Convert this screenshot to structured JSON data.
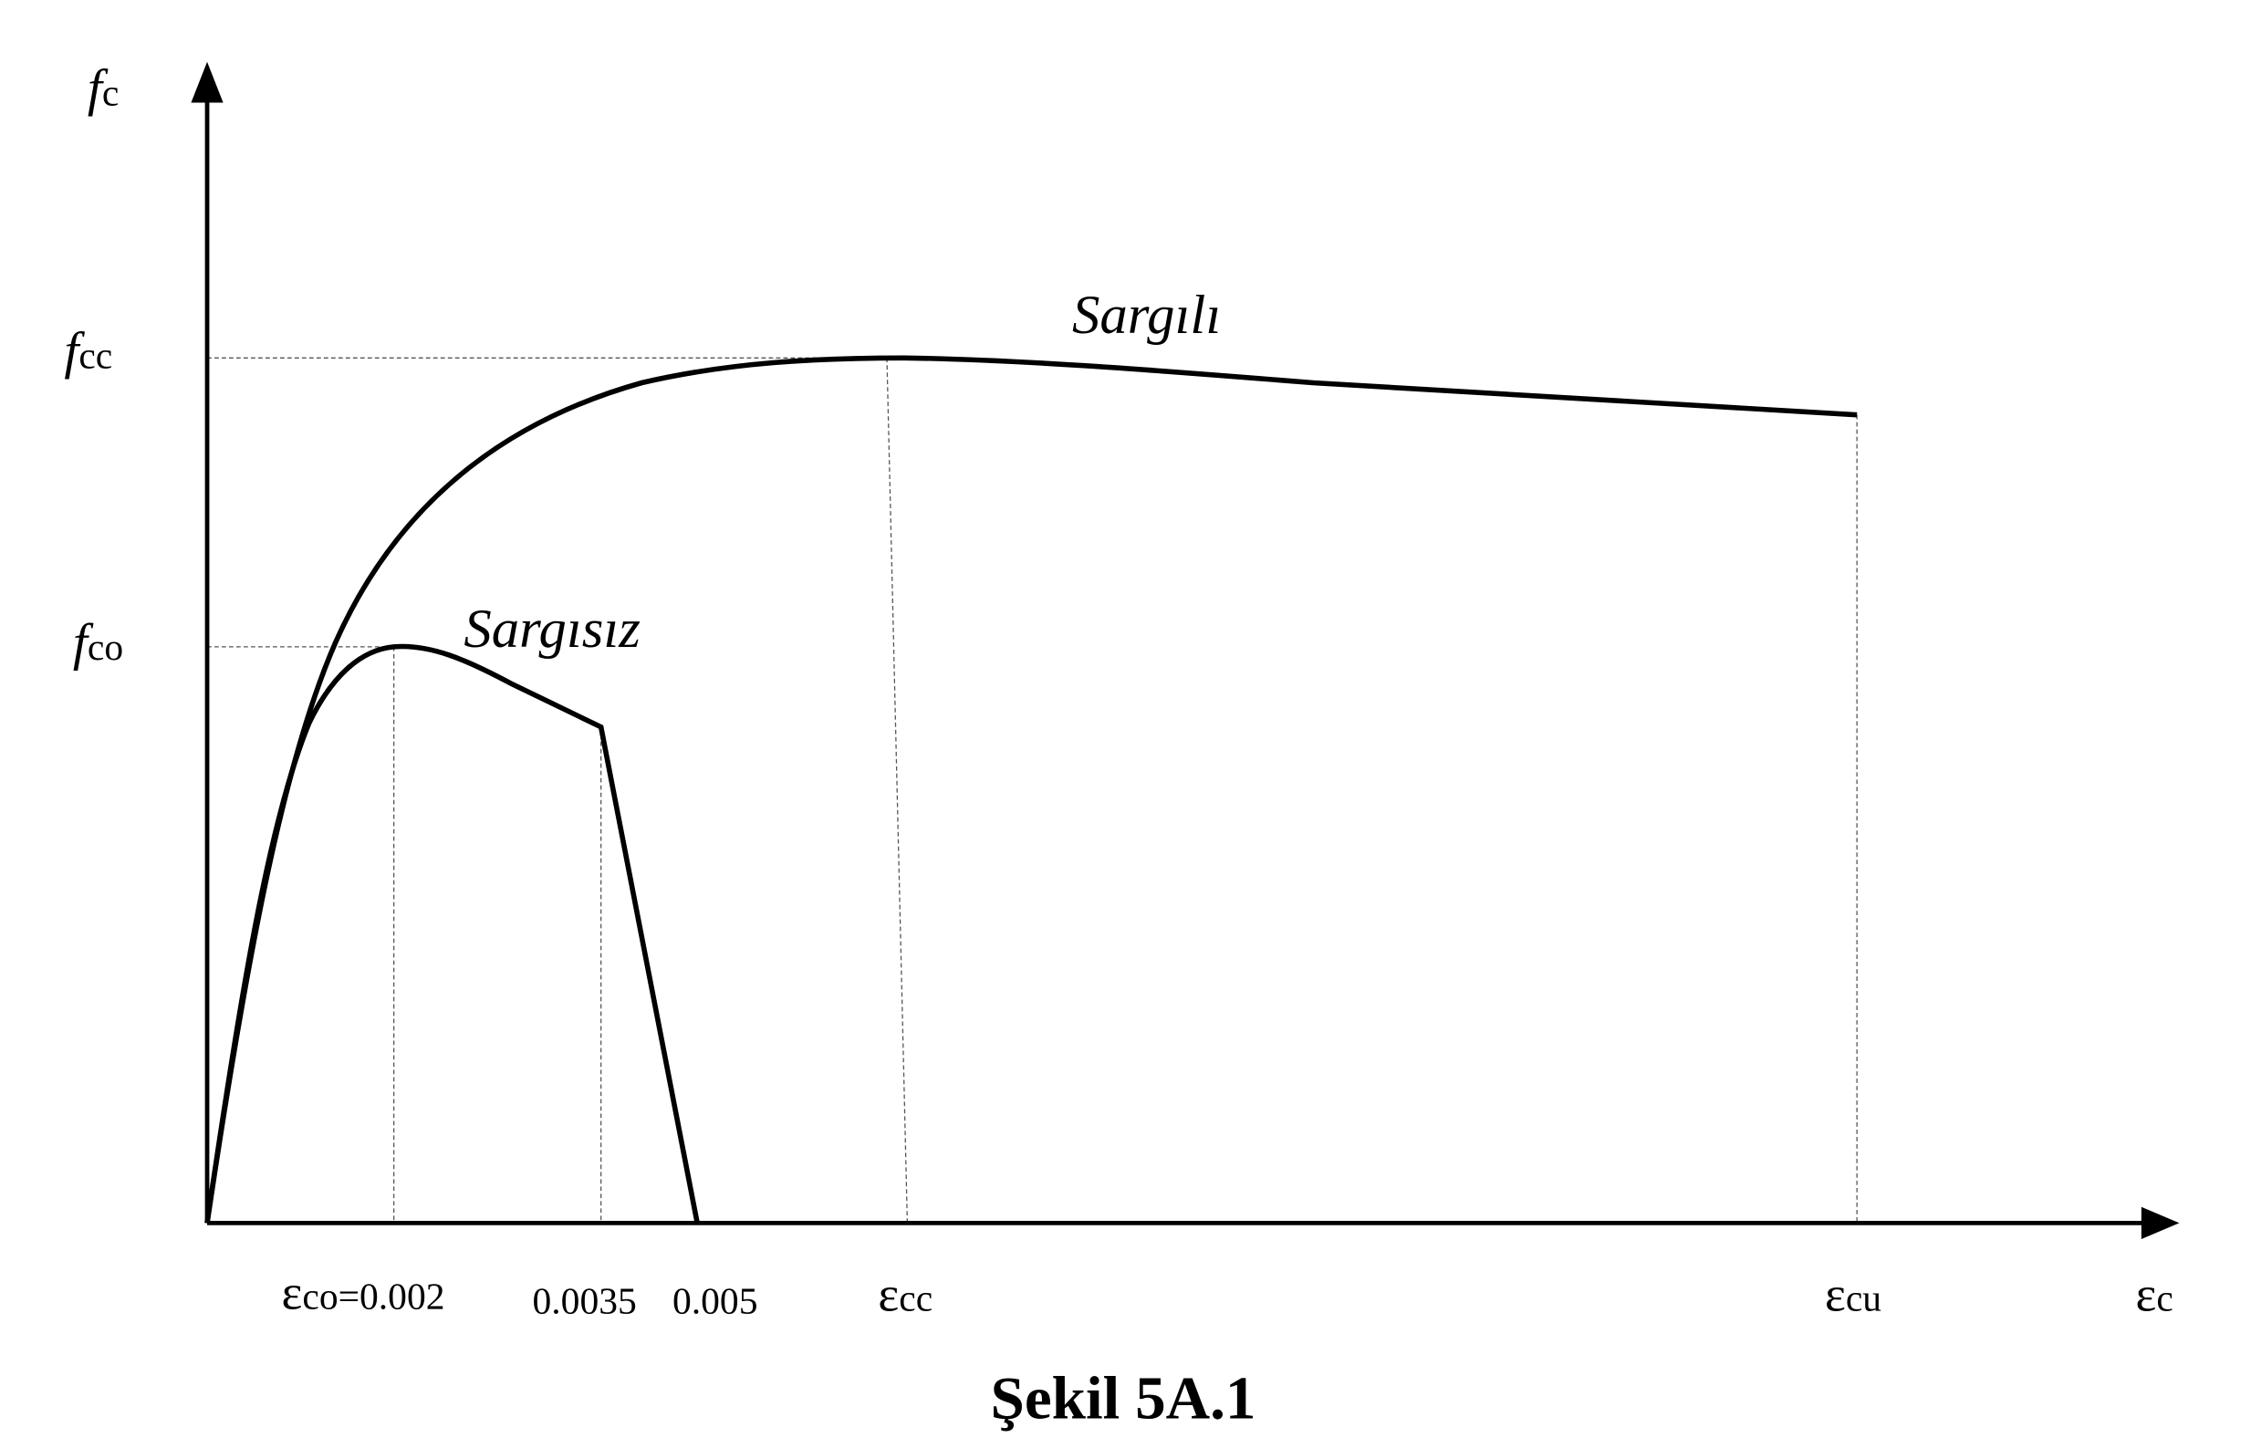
{
  "chart_data": {
    "type": "line",
    "title": "Şekil 5A.1",
    "ylabel": {
      "main": "f",
      "sub": "c"
    },
    "xlabel": {
      "main": "ε",
      "sub": "c"
    },
    "y_ticks": [
      {
        "main": "f",
        "sub": "cc"
      },
      {
        "main": "f",
        "sub": "co"
      }
    ],
    "x_ticks": [
      {
        "main": "ε",
        "sub": "co",
        "suffix": "=0.002",
        "value": 0.002
      },
      {
        "main": "",
        "sub": "",
        "suffix": "0.0035",
        "value": 0.0035
      },
      {
        "main": "",
        "sub": "",
        "suffix": "0.005",
        "value": 0.005
      },
      {
        "main": "ε",
        "sub": "cc",
        "suffix": ""
      },
      {
        "main": "ε",
        "sub": "cu",
        "suffix": ""
      }
    ],
    "series": [
      {
        "name": "Sargılı"
      },
      {
        "name": "Sargısız"
      }
    ],
    "grid": false,
    "line_color": "#000000"
  }
}
